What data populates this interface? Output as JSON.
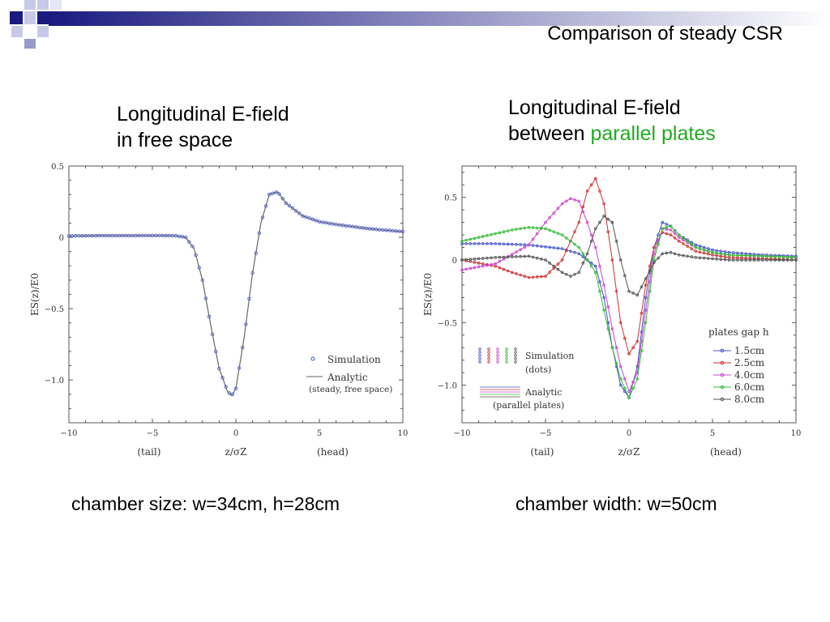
{
  "slide": {
    "title": "Comparison of steady CSR",
    "left_heading_line1": "Longitudinal E-field",
    "left_heading_line2": "in free space",
    "right_heading_line1": "Longitudinal E-field",
    "right_heading_line2_prefix": "between ",
    "right_heading_line2_highlight": "parallel plates",
    "highlight_color": "#22aa22",
    "left_caption": "chamber size:  w=34cm, h=28cm",
    "right_caption": "chamber width:  w=50cm"
  },
  "chart_data": [
    {
      "type": "line",
      "title": "",
      "xlabel": "z/σZ",
      "ylabel": "ES(z)/E0",
      "xlim": [
        -10,
        10
      ],
      "ylim": [
        -1.3,
        0.5
      ],
      "xticks": [
        -10,
        -5,
        0,
        5,
        10
      ],
      "xtick_labels": [
        "−10",
        "−5",
        "0",
        "5",
        "10"
      ],
      "yticks": [
        0.5,
        0,
        -0.5,
        -1.0
      ],
      "ytick_labels": [
        "0.5",
        "0",
        "−0.5",
        "−1.0"
      ],
      "x_side_labels": {
        "left": "(tail)",
        "right": "(head)"
      },
      "legend": {
        "entries": [
          "Simulation",
          "Analytic",
          "(steady, free space)"
        ]
      },
      "series": [
        {
          "name": "Simulation",
          "style": "dots",
          "color": "#4455cc",
          "x": [
            -10,
            -9,
            -8,
            -7,
            -6,
            -5,
            -4,
            -3.5,
            -3,
            -2.5,
            -2,
            -1.5,
            -1,
            -0.5,
            -0.25,
            0,
            0.5,
            1,
            1.5,
            2,
            2.5,
            3,
            4,
            5,
            6,
            7,
            8,
            9,
            10
          ],
          "y": [
            0.01,
            0.011,
            0.012,
            0.012,
            0.012,
            0.013,
            0.012,
            0.01,
            0.0,
            -0.08,
            -0.3,
            -0.62,
            -0.92,
            -1.08,
            -1.11,
            -1.06,
            -0.7,
            -0.25,
            0.1,
            0.3,
            0.32,
            0.24,
            0.15,
            0.11,
            0.09,
            0.075,
            0.06,
            0.05,
            0.04
          ]
        },
        {
          "name": "Analytic",
          "style": "line",
          "color": "#666666",
          "x": [
            -10,
            -9,
            -8,
            -7,
            -6,
            -5,
            -4,
            -3.5,
            -3,
            -2.5,
            -2,
            -1.5,
            -1,
            -0.5,
            -0.25,
            0,
            0.5,
            1,
            1.5,
            2,
            2.5,
            3,
            4,
            5,
            6,
            7,
            8,
            9,
            10
          ],
          "y": [
            0.01,
            0.011,
            0.012,
            0.012,
            0.012,
            0.013,
            0.012,
            0.01,
            0.0,
            -0.08,
            -0.3,
            -0.62,
            -0.92,
            -1.08,
            -1.11,
            -1.06,
            -0.7,
            -0.25,
            0.1,
            0.3,
            0.32,
            0.24,
            0.15,
            0.11,
            0.09,
            0.075,
            0.06,
            0.05,
            0.04
          ]
        }
      ]
    },
    {
      "type": "line",
      "title": "",
      "xlabel": "z/σZ",
      "ylabel": "ES(z)/E0",
      "xlim": [
        -10,
        10
      ],
      "ylim": [
        -1.3,
        0.75
      ],
      "xticks": [
        -10,
        -5,
        0,
        5,
        10
      ],
      "xtick_labels": [
        "−10",
        "−5",
        "0",
        "5",
        "10"
      ],
      "yticks": [
        0.5,
        0,
        -0.5,
        -1.0
      ],
      "ytick_labels": [
        "0.5",
        "0",
        "−0.5",
        "−1.0"
      ],
      "x_side_labels": {
        "left": "(tail)",
        "right": "(head)"
      },
      "legend": {
        "title": "plates gap h",
        "entries": [
          "1.5cm",
          "2.5cm",
          "4.0cm",
          "6.0cm",
          "8.0cm"
        ],
        "sim_label_1": "Simulation",
        "sim_label_2": "(dots)",
        "analytic_label_1": "Analytic",
        "analytic_label_2": "(parallel plates)"
      },
      "series": [
        {
          "name": "1.5cm",
          "color": "#4455cc",
          "x": [
            -10,
            -8,
            -6,
            -4,
            -3,
            -2,
            -1.5,
            -1,
            -0.5,
            0,
            0.5,
            1,
            1.5,
            2,
            2.5,
            3,
            4,
            5,
            6,
            8,
            10
          ],
          "y": [
            0.13,
            0.13,
            0.12,
            0.09,
            0.05,
            -0.05,
            -0.3,
            -0.7,
            -1.0,
            -1.1,
            -0.85,
            -0.3,
            0.1,
            0.3,
            0.27,
            0.2,
            0.12,
            0.08,
            0.06,
            0.04,
            0.03
          ]
        },
        {
          "name": "2.5cm",
          "color": "#cc3333",
          "x": [
            -10,
            -8,
            -7,
            -6,
            -5,
            -4,
            -3,
            -2.5,
            -2,
            -1.5,
            -1,
            -0.5,
            0,
            0.5,
            1,
            1.5,
            2,
            2.5,
            3,
            4,
            5,
            6,
            8,
            10
          ],
          "y": [
            0.0,
            -0.05,
            -0.1,
            -0.14,
            -0.13,
            0.0,
            0.3,
            0.55,
            0.65,
            0.45,
            0.0,
            -0.5,
            -0.75,
            -0.65,
            -0.2,
            0.1,
            0.22,
            0.2,
            0.15,
            0.07,
            0.04,
            0.02,
            0.01,
            0.0
          ]
        },
        {
          "name": "4.0cm",
          "color": "#cc44cc",
          "x": [
            -10,
            -8,
            -6,
            -5,
            -4,
            -3.5,
            -3,
            -2.5,
            -2,
            -1.5,
            -1,
            -0.5,
            0,
            0.5,
            1,
            1.5,
            2,
            2.5,
            3,
            4,
            5,
            6,
            8,
            10
          ],
          "y": [
            -0.08,
            -0.03,
            0.12,
            0.3,
            0.45,
            0.49,
            0.47,
            0.3,
            0.1,
            -0.2,
            -0.55,
            -0.85,
            -1.05,
            -0.9,
            -0.4,
            0.05,
            0.25,
            0.24,
            0.18,
            0.1,
            0.06,
            0.04,
            0.03,
            0.02
          ]
        },
        {
          "name": "6.0cm",
          "color": "#33bb33",
          "x": [
            -10,
            -8,
            -7,
            -6,
            -5,
            -4,
            -3,
            -2,
            -1.5,
            -1,
            -0.5,
            0,
            0.5,
            1,
            1.5,
            2,
            2.5,
            3,
            4,
            5,
            6,
            8,
            10
          ],
          "y": [
            0.15,
            0.21,
            0.24,
            0.26,
            0.25,
            0.2,
            0.1,
            -0.1,
            -0.4,
            -0.7,
            -0.95,
            -1.1,
            -0.95,
            -0.5,
            0.0,
            0.25,
            0.27,
            0.2,
            0.1,
            0.06,
            0.04,
            0.03,
            0.02
          ]
        },
        {
          "name": "8.0cm",
          "color": "#555555",
          "x": [
            -10,
            -8,
            -6,
            -5,
            -4,
            -3.5,
            -3,
            -2.5,
            -2,
            -1.5,
            -1,
            -0.5,
            0,
            0.5,
            1,
            1.5,
            2,
            2.5,
            3,
            4,
            5,
            6,
            8,
            10
          ],
          "y": [
            0.0,
            0.02,
            0.03,
            0.0,
            -0.1,
            -0.13,
            -0.1,
            0.05,
            0.25,
            0.35,
            0.3,
            0.0,
            -0.25,
            -0.28,
            -0.15,
            -0.02,
            0.05,
            0.06,
            0.04,
            0.02,
            0.01,
            0.0,
            0.0,
            0.0
          ]
        }
      ]
    }
  ]
}
